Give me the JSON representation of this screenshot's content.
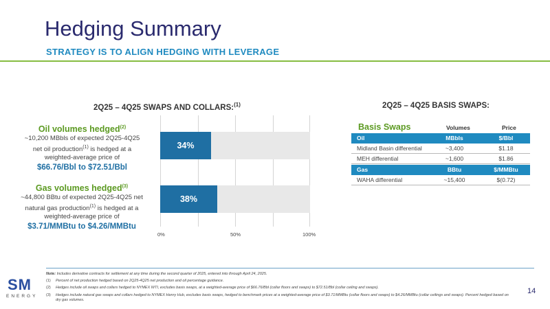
{
  "header": {
    "title": "Hedging Summary",
    "subtitle": "STRATEGY IS TO ALIGN HEDGING WITH LEVERAGE"
  },
  "left_section": {
    "heading": "2Q25 – 4Q25 SWAPS AND COLLARS:",
    "heading_sup": "(1)",
    "oil": {
      "title": "Oil volumes hedged",
      "title_sup": "(2)",
      "line1": "~10,200 MBbls of expected 2Q25-4Q25",
      "line2a": "net oil production",
      "line2_sup": "(1)",
      "line2b": " is hedged at a",
      "line3": "weighted-average price of",
      "price": "$66.76/Bbl to $72.51/Bbl"
    },
    "gas": {
      "title": "Gas volumes hedged",
      "title_sup": "(3)",
      "line1": "~44,800 BBtu of expected 2Q25-4Q25 net",
      "line2a": "natural gas production",
      "line2_sup": "(1)",
      "line2b": " is hedged at a",
      "line3": "weighted-average price of",
      "price": "$3.71/MMBtu to $4.26/MMBtu"
    }
  },
  "chart_data": {
    "type": "bar",
    "orientation": "horizontal",
    "categories": [
      "Oil",
      "Gas"
    ],
    "values": [
      34,
      38
    ],
    "value_labels": [
      "34%",
      "38%"
    ],
    "xlim": [
      0,
      100
    ],
    "xticks": [
      "0%",
      "50%",
      "100%"
    ],
    "grid": true,
    "bar_color": "#1f6fa3",
    "track_color": "#e8e8e8"
  },
  "right_section": {
    "heading": "2Q25 – 4Q25 BASIS SWAPS:",
    "table_title": "Basis Swaps",
    "col_volumes": "Volumes",
    "col_price": "Price",
    "oil_header": [
      "Oil",
      "MBbls",
      "$/Bbl"
    ],
    "oil_rows": [
      [
        "Midland Basin differential",
        "~3,400",
        "$1.18"
      ],
      [
        "MEH differential",
        "~1,600",
        "$1.86"
      ]
    ],
    "gas_header": [
      "Gas",
      "BBtu",
      "$/MMBtu"
    ],
    "gas_rows": [
      [
        "WAHA differential",
        "~15,400",
        "$(0.72)"
      ]
    ]
  },
  "footer": {
    "logo_main": "SM",
    "logo_sub": "ENERGY",
    "note_label": "Note:",
    "note": " Includes derivative contracts for settlement at any time during the second quarter of 2025, entered into through April 24, 2025.",
    "fn1_n": "(1)",
    "fn1": "Percent of net production hedged based on 2Q25-4Q25 net production and oil percentage guidance.",
    "fn2_n": "(2)",
    "fn2": "Hedges include oil swaps and collars hedged to NYMEX WTI, excludes basis swaps, at a weighted-average price of $66.76/Bbl (collar floors and swaps) to $72.51/Bbl (collar ceiling and swaps).",
    "fn3_n": "(3)",
    "fn3": "Hedges include natural gas swaps and collars hedged to NYMEX Henry Hub, excludes basis swaps, hedged to benchmark prices at a weighted-average price of $3.71/MMBtu (collar floors and swaps) to $4.26/MMBtu (collar ceilings and swaps). Percent hedged based on dry gas volumes.",
    "page": "14"
  },
  "colors": {
    "navy": "#2a2a6e",
    "blue": "#1f8ac0",
    "green": "#5c9a22",
    "accent_line": "#86bc40"
  }
}
